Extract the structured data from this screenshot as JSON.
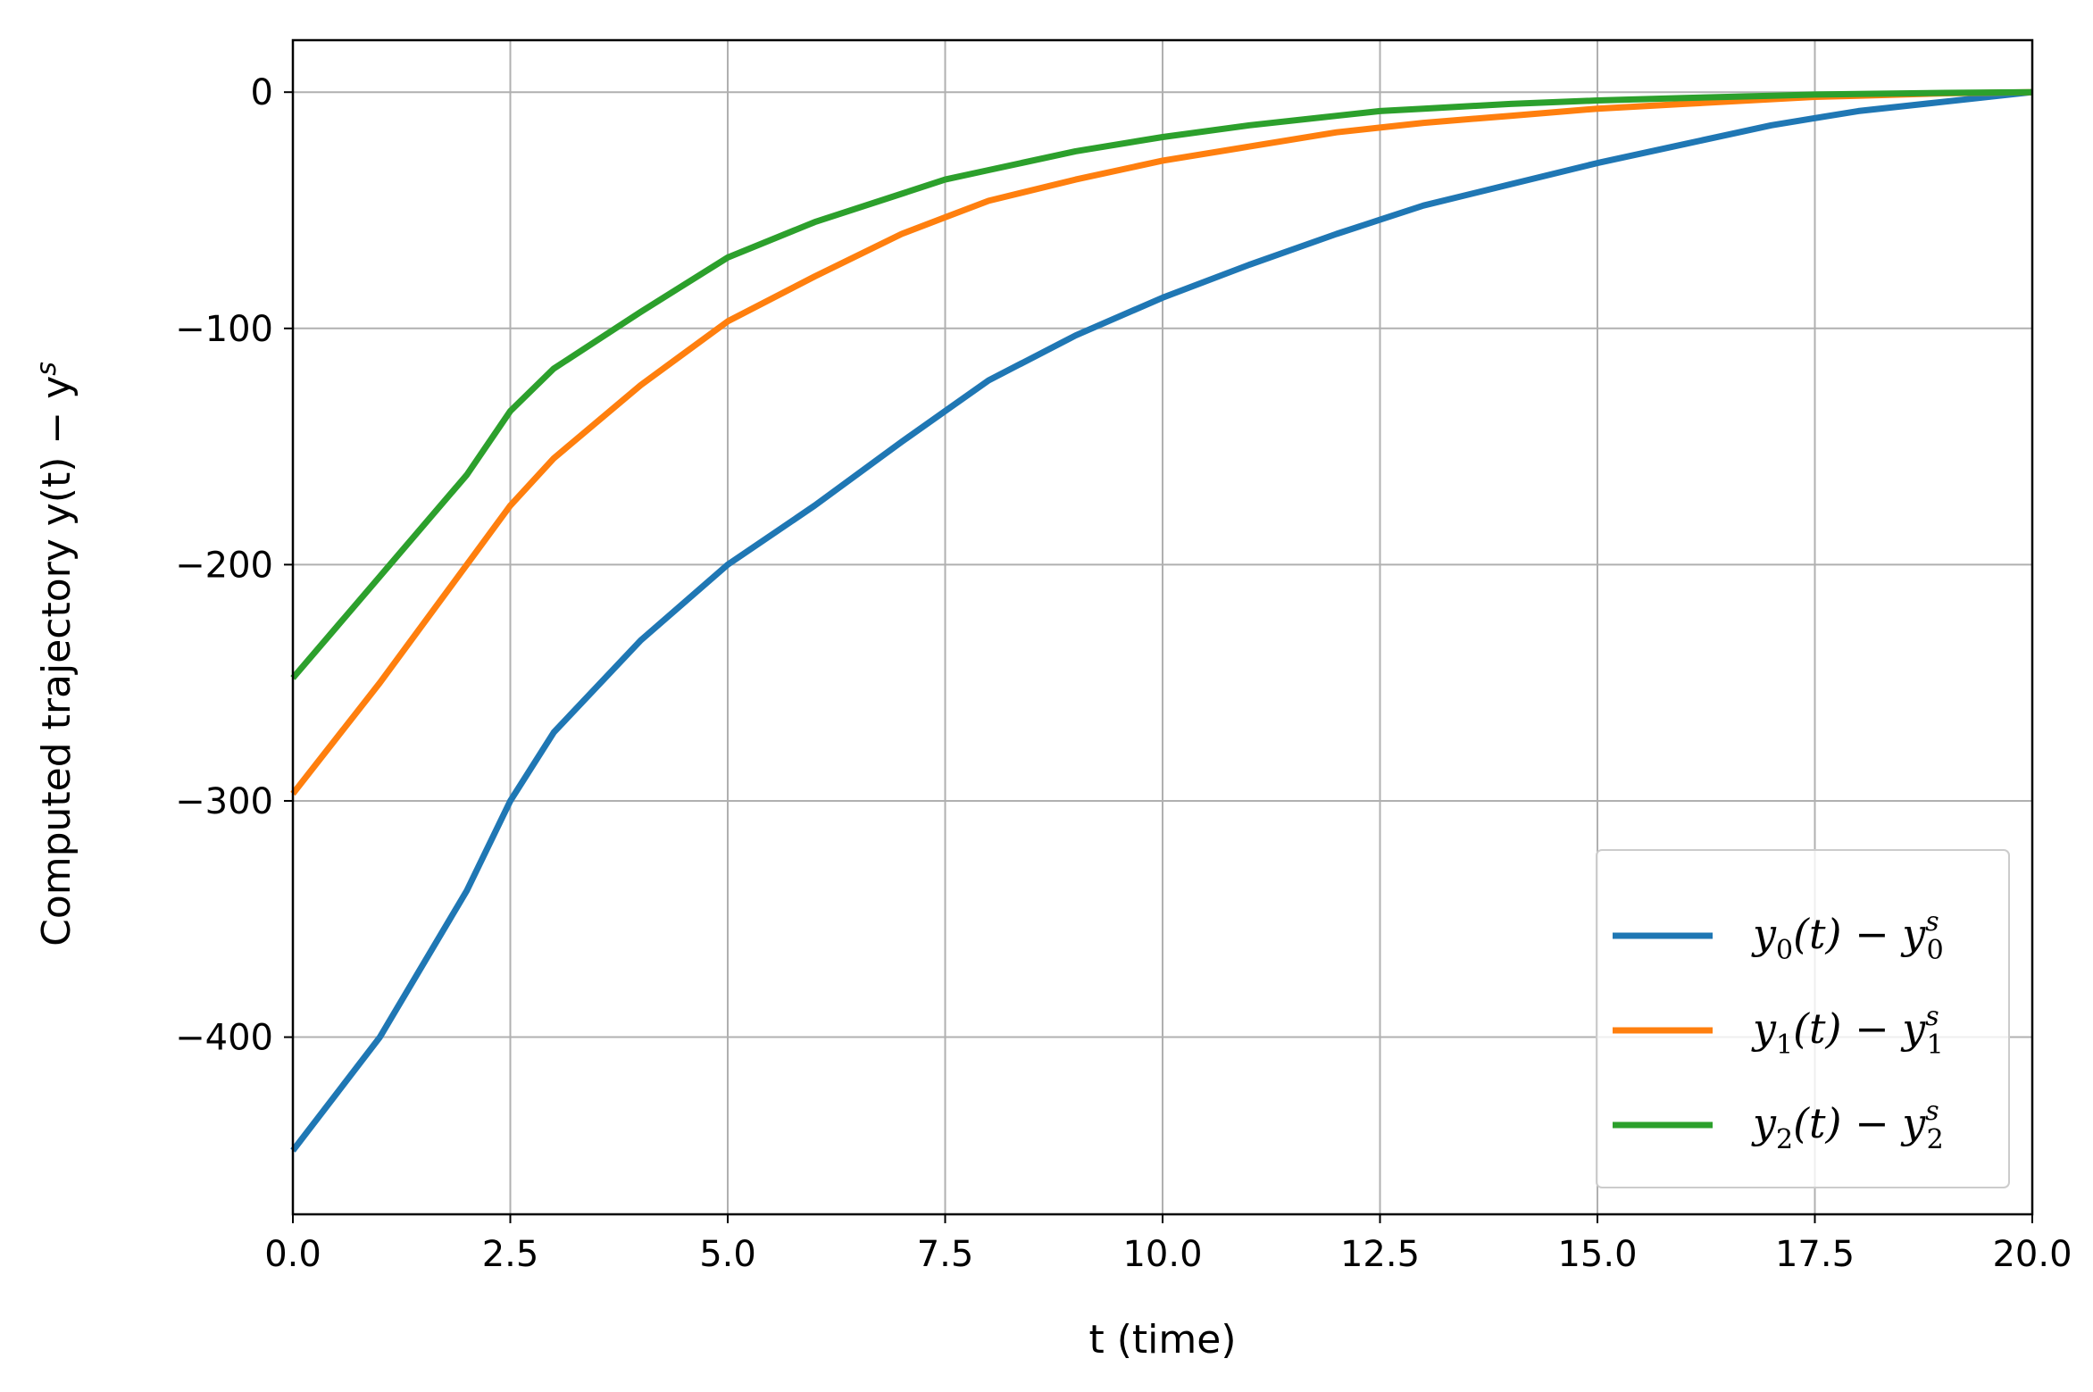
{
  "chart_data": {
    "type": "line",
    "xlabel": "t (time)",
    "ylabel": "Computed trajectory  y(t) − y",
    "ylabel_sup": "s",
    "xlim": [
      0,
      20
    ],
    "ylim": [
      -475,
      22
    ],
    "grid": true,
    "legend_position": "lower-right",
    "x_ticks": [
      "0.0",
      "2.5",
      "5.0",
      "7.5",
      "10.0",
      "12.5",
      "15.0",
      "17.5",
      "20.0"
    ],
    "y_ticks": [
      "0",
      "−100",
      "−200",
      "−300",
      "−400"
    ],
    "x": [
      0,
      1,
      2,
      2.5,
      3,
      4,
      5,
      6,
      7,
      7.5,
      8,
      9,
      10,
      11,
      12,
      12.5,
      13,
      14,
      15,
      16,
      17,
      17.5,
      18,
      19,
      20
    ],
    "series": [
      {
        "name": "y0(t) − y0s",
        "color": "#1f77b4",
        "values": [
          -448,
          -400,
          -338,
          -300,
          -271,
          -232,
          -200,
          -175,
          -148,
          -135,
          -122,
          -103,
          -87,
          -73,
          -60,
          -54,
          -48,
          -39,
          -30,
          -22,
          -14,
          -11,
          -8,
          -4,
          0
        ]
      },
      {
        "name": "y1(t) − y1s",
        "color": "#ff7f0e",
        "values": [
          -297,
          -250,
          -200,
          -175,
          -155,
          -124,
          -97,
          -78,
          -60,
          -53,
          -46,
          -37,
          -29,
          -23,
          -17,
          -15,
          -13,
          -10,
          -7,
          -5,
          -3,
          -2,
          -1.5,
          -0.5,
          0
        ]
      },
      {
        "name": "y2(t) − y2s",
        "color": "#2ca02c",
        "values": [
          -248,
          -205,
          -162,
          -135,
          -117,
          -93,
          -70,
          -55,
          -43,
          -37,
          -33,
          -25,
          -19,
          -14,
          -10,
          -8,
          -7,
          -5,
          -3.5,
          -2.5,
          -1.5,
          -1,
          -0.8,
          -0.3,
          0
        ]
      }
    ],
    "legend": [
      {
        "base": "y",
        "sub1": "0",
        "mid": "(t) − y",
        "sup": "s",
        "sub2": "0"
      },
      {
        "base": "y",
        "sub1": "1",
        "mid": "(t) − y",
        "sup": "s",
        "sub2": "1"
      },
      {
        "base": "y",
        "sub1": "2",
        "mid": "(t) − y",
        "sup": "s",
        "sub2": "2"
      }
    ]
  }
}
